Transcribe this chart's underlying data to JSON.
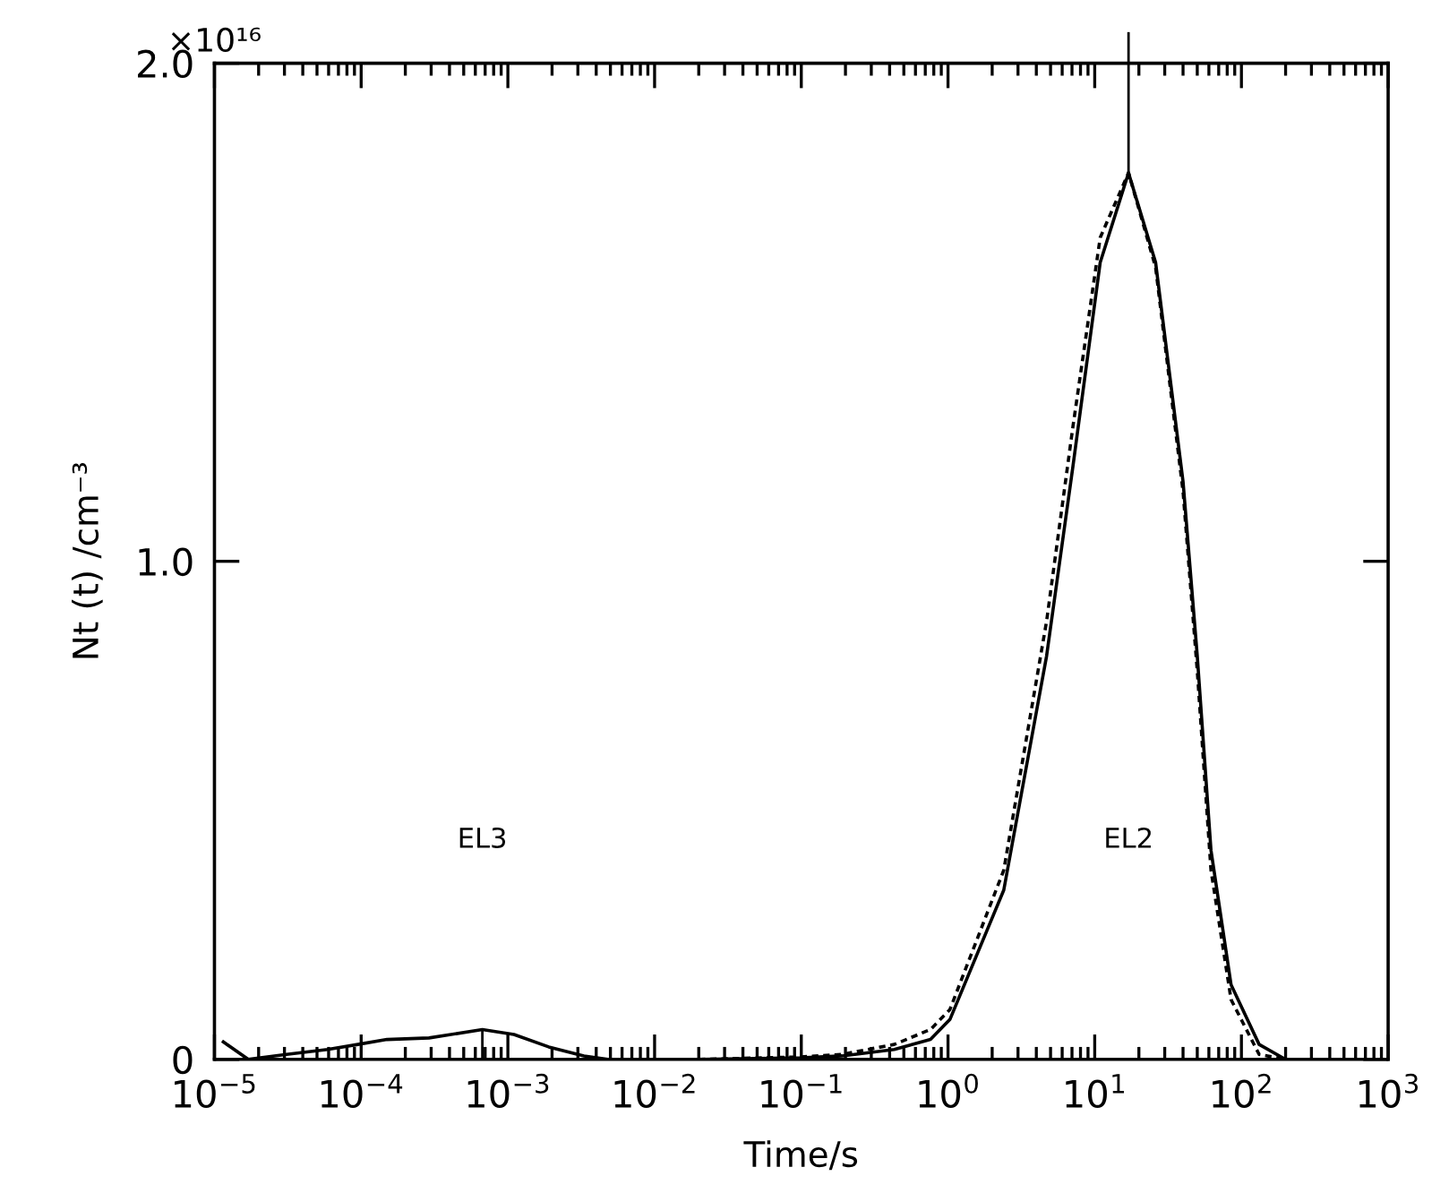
{
  "chart_data": {
    "type": "line",
    "xlabel": "Time/s",
    "ylabel": "Nt (t) /cm⁻³",
    "log": "x",
    "xlim": [
      1e-05,
      1000
    ],
    "ylim": [
      0,
      2
    ],
    "xticks": [
      {
        "value": 1e-05,
        "label": "10$^{−5}$"
      },
      {
        "value": 0.0001,
        "label": "10$^{−4}$"
      },
      {
        "value": 0.001,
        "label": "10$^{−3}$"
      },
      {
        "value": 0.01,
        "label": "10$^{−2}$"
      },
      {
        "value": 0.1,
        "label": "10$^{−1}$"
      },
      {
        "value": 1,
        "label": "10$^{0}$"
      },
      {
        "value": 10,
        "label": "10$^{1}$"
      },
      {
        "value": 100,
        "label": "10$^{2}$"
      },
      {
        "value": 1000,
        "label": "10$^{3}$"
      }
    ],
    "yticks": [
      0,
      {
        "value": 1,
        "label": "1.0"
      },
      {
        "value": 2,
        "label": "2.0"
      }
    ],
    "grid": false,
    "legend": false,
    "marker": "none",
    "series": [
      {
        "color": "#000000",
        "line_style": "solid",
        "x": [
          1.15e-05,
          1.7e-05,
          3.1e-05,
          5.9e-05,
          9.5e-05,
          0.00015,
          0.00029,
          0.00067,
          0.0011,
          0.0019,
          0.0033,
          0.0048,
          0.02,
          0.1,
          0.19,
          0.43,
          0.76,
          1.03,
          2.4,
          4.7,
          7.1,
          10.9,
          17,
          26,
          40,
          50,
          62,
          85,
          132,
          200
        ],
        "values": [
          0.035,
          0,
          0.01,
          0.02,
          0.03,
          0.04,
          0.043,
          0.06,
          0.05,
          0.025,
          0.007,
          0,
          0,
          0.003,
          0.007,
          0.02,
          0.04,
          0.08,
          0.34,
          0.81,
          1.19,
          1.6,
          1.78,
          1.6,
          1.16,
          0.81,
          0.42,
          0.15,
          0.03,
          0
        ]
      },
      {
        "color": "#000000",
        "line_style": "dotted",
        "x": [
          0.02,
          0.1,
          0.19,
          0.43,
          0.76,
          1.03,
          2.4,
          4.7,
          7.1,
          10.9,
          17,
          26,
          40,
          50,
          62,
          85,
          132,
          200
        ],
        "values": [
          0,
          0.005,
          0.01,
          0.03,
          0.06,
          0.1,
          0.38,
          0.88,
          1.27,
          1.65,
          1.78,
          1.59,
          1.14,
          0.78,
          0.38,
          0.12,
          0.01,
          0
        ]
      }
    ],
    "annotations": [
      "×10¹⁶",
      "EL3",
      "EL2"
    ]
  }
}
